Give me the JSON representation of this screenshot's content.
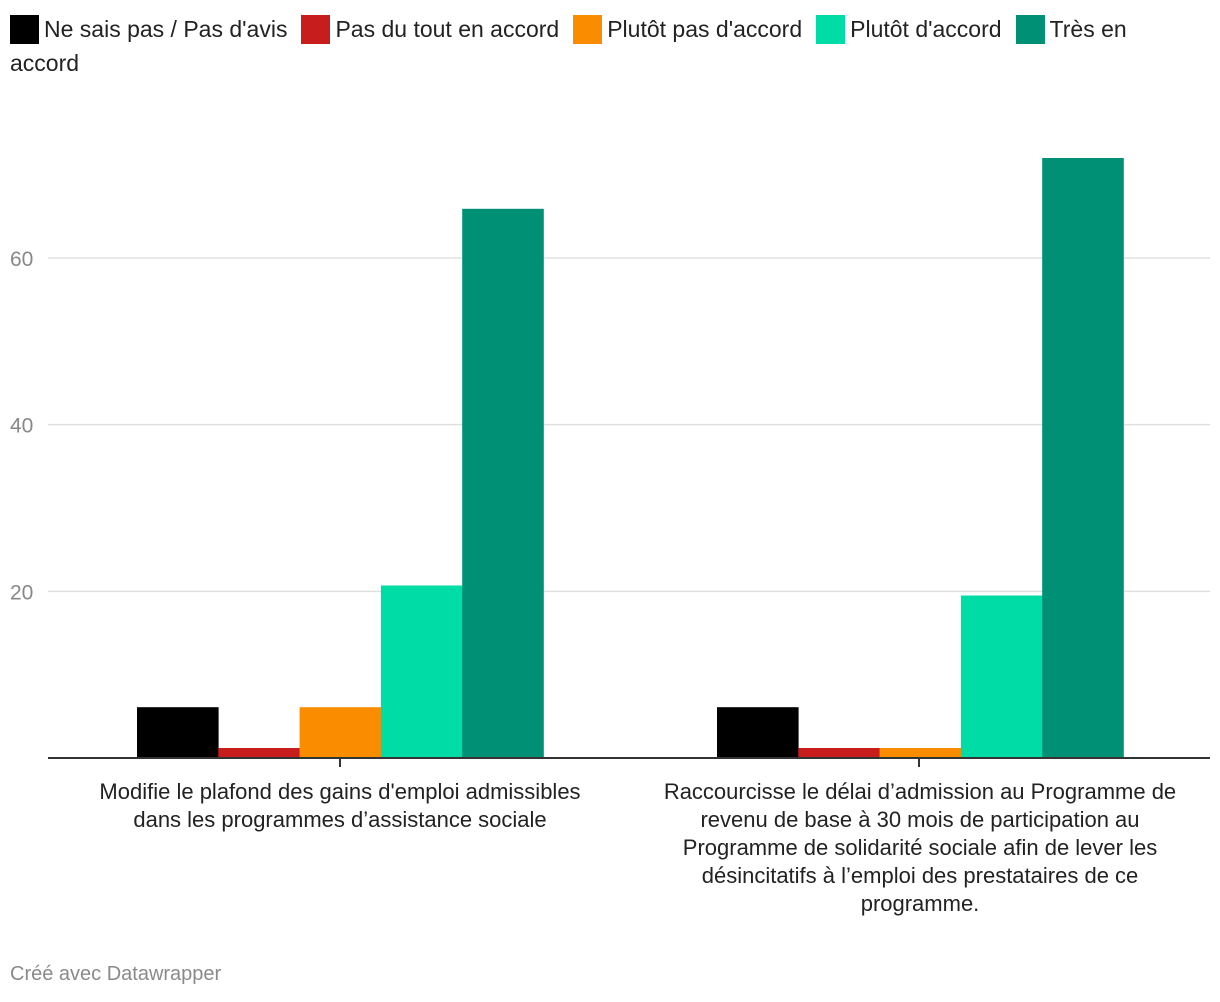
{
  "chart_data": {
    "type": "bar",
    "title": "",
    "xlabel": "",
    "ylabel": "",
    "ylim": [
      0,
      72
    ],
    "yticks": [
      20,
      40,
      60
    ],
    "grid": true,
    "legend_position": "top",
    "categories": [
      "Modifie le plafond des gains d'emploi admissibles dans les programmes d’assistance sociale",
      "Raccourcisse le délai d’admission au Programme de revenu de base à 30 mois de participation au Programme de solidarité sociale afin de lever les désincitatifs à l’emploi des prestataires de ce programme."
    ],
    "series": [
      {
        "name": "Ne sais pas / Pas d'avis",
        "color": "#000000",
        "values": [
          6.1,
          6.1
        ]
      },
      {
        "name": "Pas du tout en accord",
        "color": "#c71e1d",
        "values": [
          1.2,
          1.2
        ]
      },
      {
        "name": "Plutôt pas d'accord",
        "color": "#fa8c00",
        "values": [
          6.1,
          1.2
        ]
      },
      {
        "name": "Plutôt d'accord",
        "color": "#00dca6",
        "values": [
          20.7,
          19.5
        ]
      },
      {
        "name": "Très en accord",
        "color": "#009076",
        "values": [
          65.9,
          72.0
        ]
      }
    ]
  },
  "footer": {
    "credit": "Créé avec Datawrapper"
  }
}
